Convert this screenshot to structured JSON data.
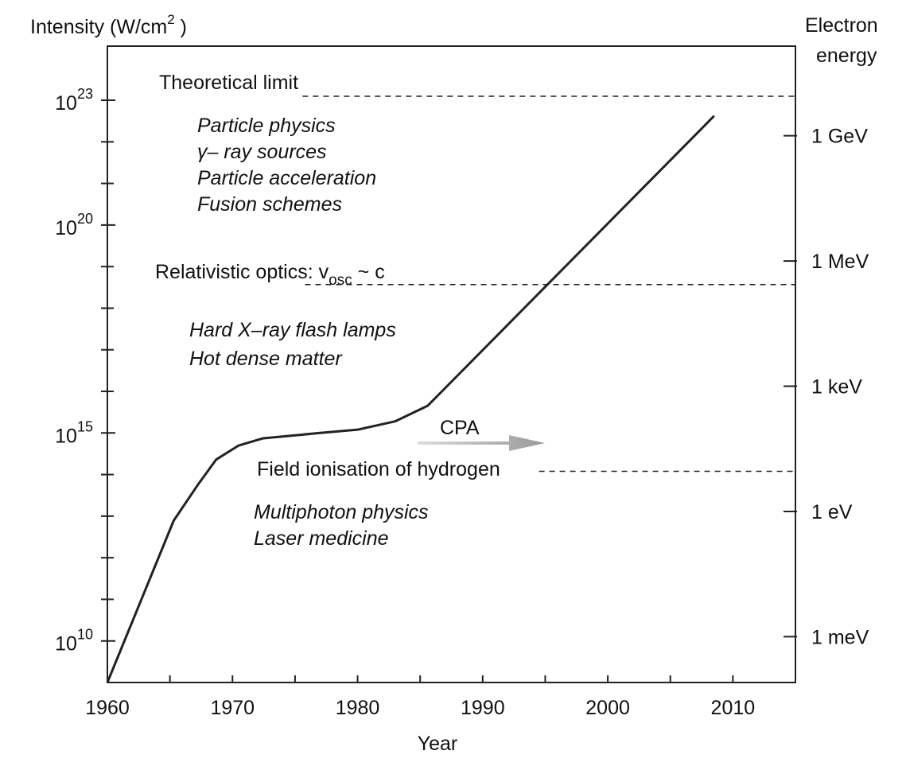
{
  "chart_data": {
    "type": "line",
    "ylabel_parts": [
      "Intensity (W/cm",
      "2",
      " )"
    ],
    "y2label_lines": [
      "Electron",
      "energy"
    ],
    "xlabel": "Year",
    "x": [
      1960,
      1965.3,
      1967.2,
      1968.7,
      1970.5,
      1972.4,
      1977,
      1980,
      1983,
      1985.6,
      1987,
      2008.5
    ],
    "series": [
      {
        "color": "#222222",
        "values": [
          1000000000.0,
          7800000000000.0,
          55000000000000.0,
          230000000000000.0,
          500000000000000.0,
          740000000000000.0,
          1000000000000000.0,
          1200000000000000.0,
          1900000000000000.0,
          4500000000000000.0,
          1.2e+16,
          4.2e+22
        ]
      }
    ],
    "xlim": [
      1960,
      2015
    ],
    "xticks": [
      1960,
      1970,
      1980,
      1990,
      2000,
      2010
    ],
    "xminor_ticks": [
      1965,
      1975,
      1985,
      1995,
      2005
    ],
    "ylim": [
      1000000000.0,
      2e+24
    ],
    "log_y": true,
    "yticks": [
      {
        "value": 10000000000.0,
        "label": "10",
        "exponent": "10"
      },
      {
        "value": 1000000000000000.0,
        "label": "10",
        "exponent": "15"
      },
      {
        "value": 1e+20,
        "label": "10",
        "exponent": "20"
      },
      {
        "value": 1e+23,
        "label": "10",
        "exponent": "23"
      }
    ],
    "yminor_ticks": [
      100000000000.0,
      1000000000000.0,
      10000000000000.0,
      100000000000000.0,
      1e+16,
      1e+17,
      1e+18,
      1e+19,
      1e+21,
      1e+22
    ],
    "y2lim": [
      8e-05,
      140000000000.0
    ],
    "y2ticks": [
      {
        "value": 0.001,
        "label": "1 meV"
      },
      {
        "value": 1,
        "label": "1 eV"
      },
      {
        "value": 1000.0,
        "label": "1 keV"
      },
      {
        "value": 1000000.0,
        "label": "1 MeV"
      },
      {
        "value": 1000000000.0,
        "label": "1 GeV"
      }
    ],
    "thresholds": [
      {
        "label_parts": [
          "Theoretical limit"
        ],
        "value": 1.25e+23,
        "x_start": 1975.6
      },
      {
        "label_parts": [
          "Relativistic optics: v",
          "osc",
          " ~ c"
        ],
        "value": 3.7e+18,
        "x_start": 1975.8
      },
      {
        "label_parts": [
          "Field ionisation of hydrogen"
        ],
        "value": 120000000000000.0,
        "x_start": 1994.5
      }
    ],
    "regimes": [
      [
        "Particle physics",
        "γ– ray sources",
        "Particle acceleration",
        "Fusion schemes"
      ],
      [
        "Hard X–ray flash lamps",
        "Hot dense matter"
      ],
      [
        "Multiphoton physics",
        "Laser medicine"
      ]
    ],
    "arrow_label": "CPA"
  }
}
